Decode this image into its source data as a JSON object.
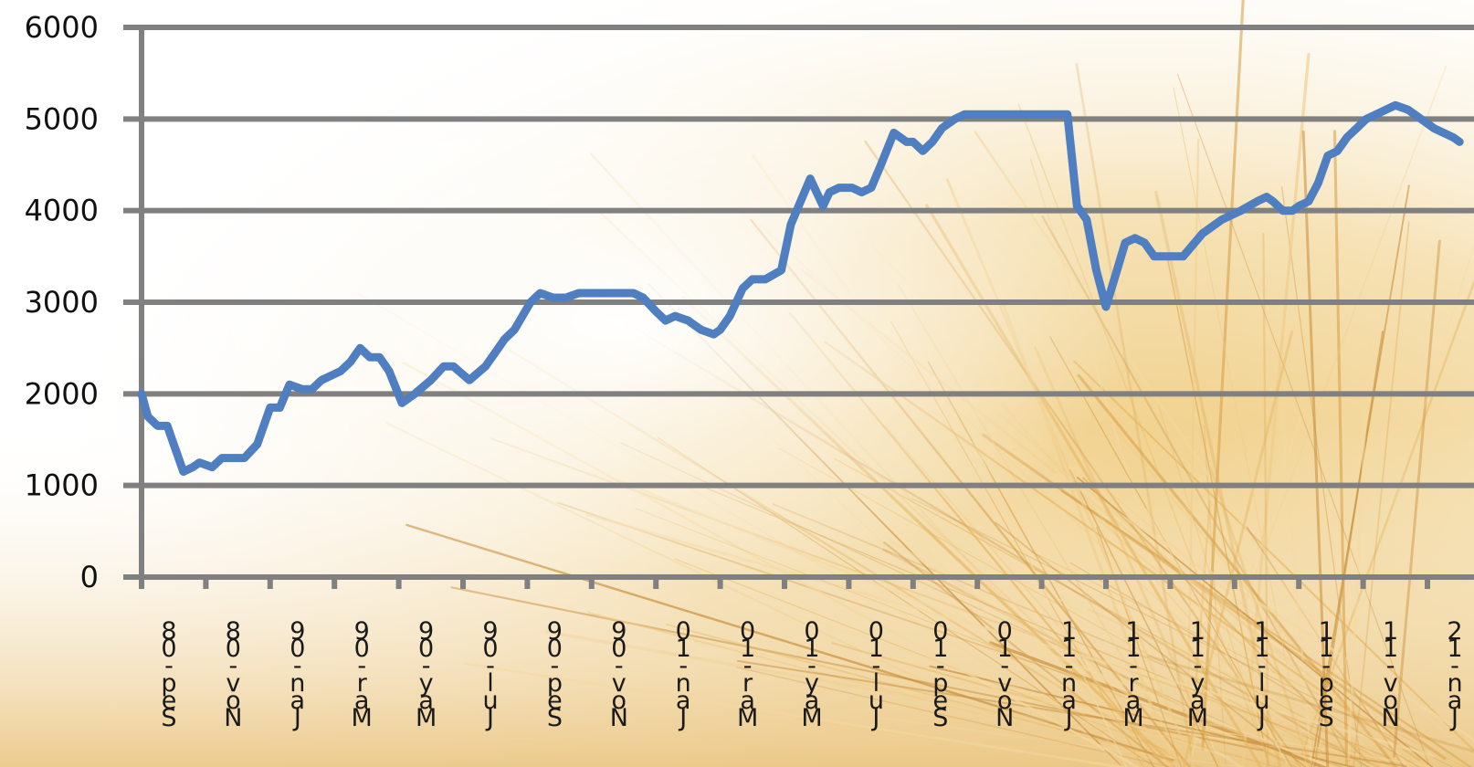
{
  "chart_data": {
    "type": "line",
    "title": "",
    "xlabel": "",
    "ylabel": "",
    "ylim": [
      0,
      6000
    ],
    "yticks": [
      "0",
      "1000",
      "2000",
      "3000",
      "4000",
      "5000",
      "6000"
    ],
    "grid": "horizontal",
    "legend": "none",
    "line_color": "#4f7fc0",
    "grid_color": "#808080",
    "x_tick_labels": [
      "Sep-08",
      "Nov-08",
      "Jan-09",
      "Mar-09",
      "May-09",
      "Jul-09",
      "Sep-09",
      "Nov-09",
      "Jan-10",
      "Mar-10",
      "May-10",
      "Jul-10",
      "Sep-10",
      "Nov-10",
      "Jan-11",
      "Mar-11",
      "May-11",
      "Jul-11",
      "Sep-11",
      "Nov-11",
      "Jan-12"
    ],
    "x": [
      0,
      0.2,
      0.5,
      0.8,
      1.0,
      1.3,
      1.6,
      1.8,
      2.2,
      2.5,
      2.8,
      3.2,
      3.6,
      4.0,
      4.3,
      4.6,
      5.0,
      5.3,
      5.6,
      5.9,
      6.2,
      6.5,
      6.8,
      7.1,
      7.4,
      7.7,
      8.1,
      8.5,
      9.0,
      9.4,
      9.7,
      10.2,
      10.7,
      11.0,
      11.3,
      11.6,
      12.1,
      12.4,
      12.8,
      13.2,
      13.6,
      14.0,
      14.3,
      14.6,
      15.0,
      15.3,
      15.6,
      16.0,
      16.3,
      16.6,
      17.0,
      17.4,
      17.8,
      18.0,
      18.3,
      18.7,
      19.0,
      19.4,
      19.9,
      20.2,
      20.5,
      20.8,
      21.2,
      21.4,
      21.7,
      22.1,
      22.4,
      22.7,
      23.0,
      23.4,
      23.8,
      24.0,
      24.3,
      24.6,
      24.9,
      25.3,
      25.6,
      26.0,
      26.3,
      26.6,
      27.0,
      27.3,
      27.6,
      28.0,
      28.4,
      28.8,
      29.1,
      29.4,
      29.7,
      30.0,
      30.3,
      30.6,
      30.9,
      31.2,
      31.5,
      31.8,
      32.1,
      32.4,
      33.0,
      33.6,
      34.2,
      34.7,
      35.0,
      35.2,
      35.5,
      35.8,
      36.0,
      36.3,
      36.6,
      36.9,
      37.2,
      37.5,
      37.8,
      38.1,
      38.4,
      38.7,
      39.0,
      39.4,
      39.8,
      40.2,
      40.5,
      40.8,
      41.0
    ],
    "values": [
      2000,
      1750,
      1650,
      1650,
      1450,
      1150,
      1200,
      1250,
      1200,
      1300,
      1300,
      1300,
      1450,
      1850,
      1850,
      2100,
      2050,
      2050,
      2150,
      2200,
      2250,
      2350,
      2500,
      2400,
      2400,
      2250,
      1900,
      2000,
      2150,
      2300,
      2300,
      2150,
      2300,
      2450,
      2600,
      2700,
      3000,
      3100,
      3050,
      3050,
      3100,
      3100,
      3100,
      3100,
      3100,
      3100,
      3050,
      2900,
      2800,
      2850,
      2800,
      2700,
      2650,
      2700,
      2850,
      3150,
      3250,
      3250,
      3350,
      3850,
      4100,
      4350,
      4050,
      4200,
      4250,
      4250,
      4200,
      4250,
      4500,
      4850,
      4750,
      4750,
      4650,
      4750,
      4900,
      5000,
      5050,
      5050,
      5050,
      5050,
      5050,
      5050,
      5050,
      5050,
      5050,
      5050,
      4050,
      3900,
      3350,
      2950,
      3300,
      3650,
      3700,
      3650,
      3500,
      3500,
      3500,
      3500,
      3750,
      3900,
      4000,
      4100,
      4150,
      4100,
      4000,
      4000,
      4050,
      4100,
      4300,
      4600,
      4650,
      4800,
      4900,
      5000,
      5050,
      5100,
      5150,
      5100,
      5000,
      4900,
      4850,
      4800,
      4750
    ]
  }
}
